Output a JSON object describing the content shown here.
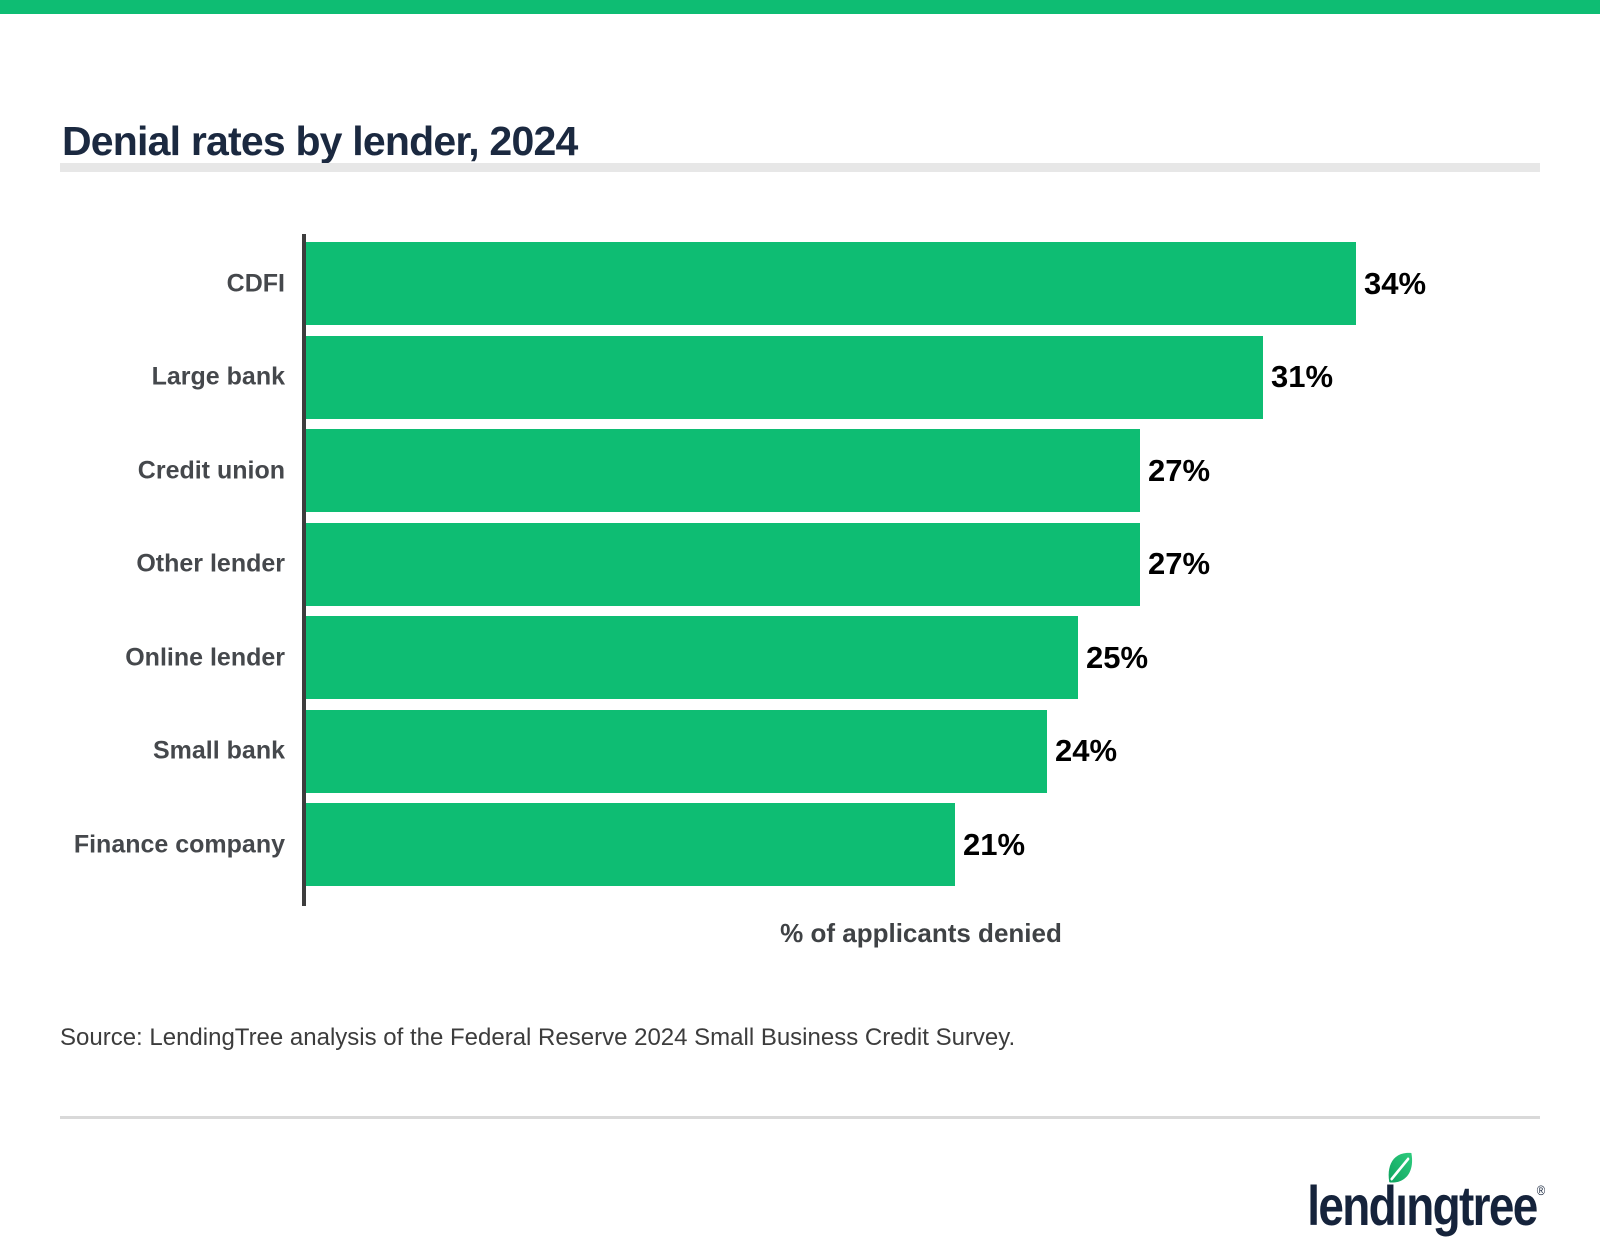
{
  "top_bar": {
    "color": "#0EBD73"
  },
  "header": {
    "title": "Denial rates by lender, 2024"
  },
  "chart_data": {
    "type": "bar",
    "orientation": "horizontal",
    "title": "Denial rates by lender, 2024",
    "categories": [
      "CDFI",
      "Large bank",
      "Credit union",
      "Other lender",
      "Online lender",
      "Small bank",
      "Finance company"
    ],
    "values": [
      34,
      31,
      27,
      27,
      25,
      24,
      21
    ],
    "value_labels": [
      "34%",
      "31%",
      "27%",
      "27%",
      "25%",
      "24%",
      "21%"
    ],
    "xlabel": "% of applicants denied",
    "ylabel": "",
    "xlim": [
      0,
      34
    ],
    "grid": false,
    "legend": false,
    "bar_color": "#0EBD73",
    "axis_line_color": "#3D3D3D",
    "category_label_color": "#45484C",
    "value_label_color": "#000000",
    "xlabel_color": "#3F4245"
  },
  "footer": {
    "source": "Source: LendingTree analysis of the Federal Reserve 2024 Small Business Credit Survey.",
    "logo": {
      "brand_name": "lendingtree",
      "text_before_leaf": "lend",
      "dotless_i": "ı",
      "text_after_leaf": "ngtree",
      "registered": "®",
      "text_color": "#15233B",
      "leaf_gradient_start": "#0FA35F",
      "leaf_gradient_end": "#2ECC7E"
    }
  }
}
